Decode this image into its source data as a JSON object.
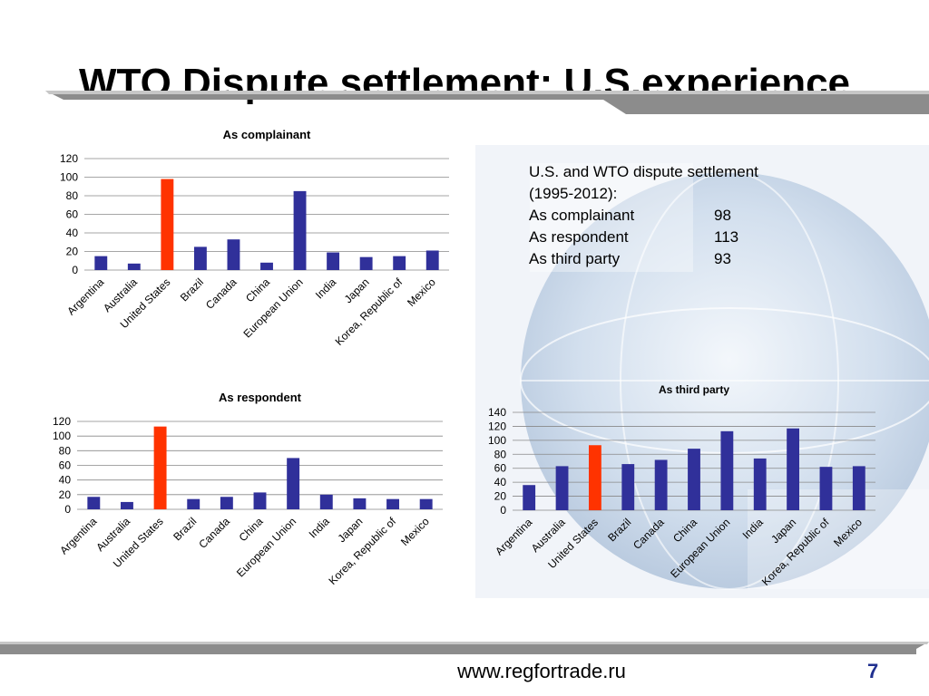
{
  "slide": {
    "title": "WTO Dispute settlement: U.S.experience",
    "footer_url": "www.regfortrade.ru",
    "page_number": "7"
  },
  "summary": {
    "heading_line1": "U.S. and WTO dispute settlement",
    "heading_line2": "(1995-2012):",
    "rows": [
      {
        "label": "As complainant",
        "value": "98"
      },
      {
        "label": "As respondent",
        "value": "113"
      },
      {
        "label": "As third party",
        "value": "93"
      }
    ]
  },
  "colors": {
    "bar": "#30309a",
    "highlight": "#ff3300",
    "grid": "#888888",
    "band": "#8c8c8c"
  },
  "chart_data": [
    {
      "type": "bar",
      "title": "As complainant",
      "categories": [
        "Argentina",
        "Australia",
        "United States",
        "Brazil",
        "Canada",
        "China",
        "European Union",
        "India",
        "Japan",
        "Korea, Republic of",
        "Mexico"
      ],
      "values": [
        15,
        7,
        98,
        25,
        33,
        8,
        85,
        19,
        14,
        15,
        21
      ],
      "highlight_category": "United States",
      "ylim": [
        0,
        120
      ],
      "yticks": [
        0,
        20,
        40,
        60,
        80,
        100,
        120
      ],
      "grid": true
    },
    {
      "type": "bar",
      "title": "As respondent",
      "categories": [
        "Argentina",
        "Australia",
        "United States",
        "Brazil",
        "Canada",
        "China",
        "European Union",
        "India",
        "Japan",
        "Korea, Republic of",
        "Mexico"
      ],
      "values": [
        17,
        10,
        113,
        14,
        17,
        23,
        70,
        20,
        15,
        14,
        14
      ],
      "highlight_category": "United States",
      "ylim": [
        0,
        120
      ],
      "yticks": [
        0,
        20,
        40,
        60,
        80,
        100,
        120
      ],
      "grid": true
    },
    {
      "type": "bar",
      "title": "As third party",
      "categories": [
        "Argentina",
        "Australia",
        "United States",
        "Brazil",
        "Canada",
        "China",
        "European Union",
        "India",
        "Japan",
        "Korea, Republic of",
        "Mexico"
      ],
      "values": [
        36,
        63,
        93,
        66,
        72,
        88,
        113,
        74,
        117,
        62,
        63
      ],
      "highlight_category": "United States",
      "ylim": [
        0,
        140
      ],
      "yticks": [
        0,
        20,
        40,
        60,
        80,
        100,
        120,
        140
      ],
      "grid": true
    }
  ]
}
